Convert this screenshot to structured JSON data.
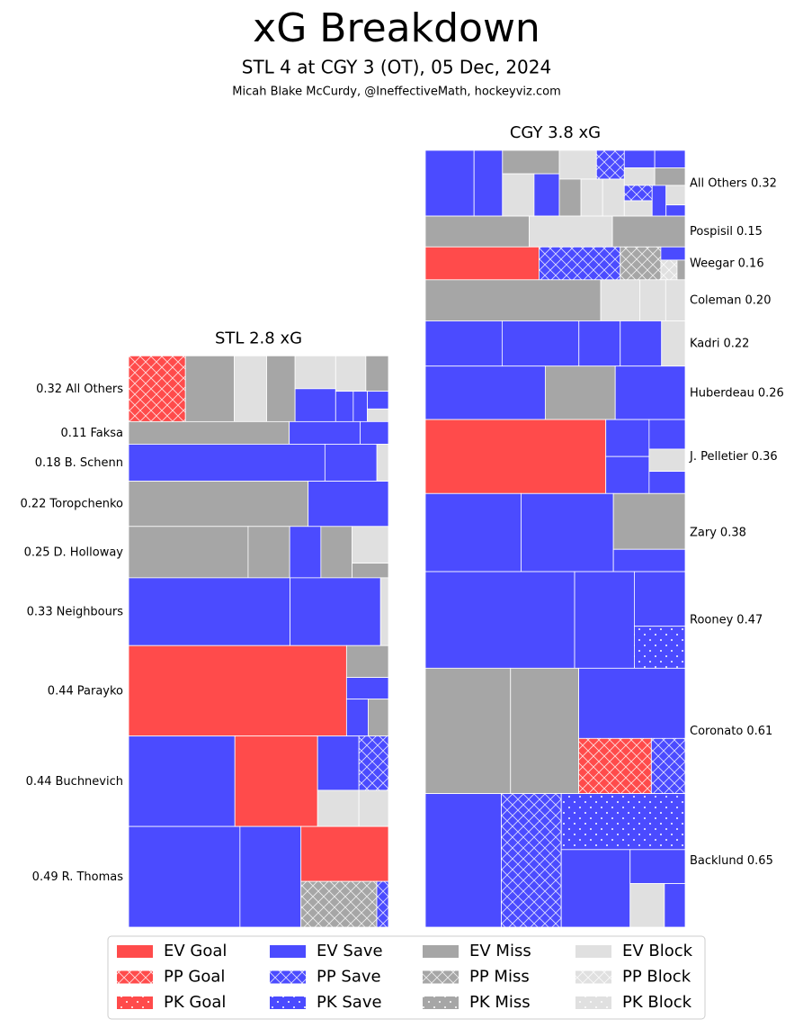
{
  "title": "xG Breakdown",
  "subtitle": "STL 4 at CGY 3 (OT), 05 Dec, 2024",
  "credit": "Micah Blake McCurdy, @IneffectiveMath, hockeyviz.com",
  "chart_data": {
    "type": "treemap",
    "legend": [
      {
        "name": "EV Goal",
        "color": "#ff4b4b",
        "pattern": "solid"
      },
      {
        "name": "PP Goal",
        "color": "#ff4b4b",
        "pattern": "cross"
      },
      {
        "name": "PK Goal",
        "color": "#ff4b4b",
        "pattern": "dots"
      },
      {
        "name": "EV Save",
        "color": "#4b4bff",
        "pattern": "solid"
      },
      {
        "name": "PP Save",
        "color": "#4b4bff",
        "pattern": "cross"
      },
      {
        "name": "PK Save",
        "color": "#4b4bff",
        "pattern": "dots"
      },
      {
        "name": "EV Miss",
        "color": "#a6a6a6",
        "pattern": "solid"
      },
      {
        "name": "PP Miss",
        "color": "#a6a6a6",
        "pattern": "cross"
      },
      {
        "name": "PK Miss",
        "color": "#a6a6a6",
        "pattern": "dots"
      },
      {
        "name": "EV Block",
        "color": "#e0e0e0",
        "pattern": "solid"
      },
      {
        "name": "PP Block",
        "color": "#e0e0e0",
        "pattern": "cross"
      },
      {
        "name": "PK Block",
        "color": "#e0e0e0",
        "pattern": "dots"
      }
    ],
    "teams": [
      {
        "title": "STL 2.8 xG",
        "label_side": "left",
        "players": [
          {
            "name": "All Others",
            "xg": 0.32,
            "shots": [
              [
                1,
                0.07
              ],
              [
                6,
                0.06
              ],
              [
                9,
                0.04
              ],
              [
                6,
                0.035
              ],
              [
                9,
                0.025
              ],
              [
                3,
                0.025
              ],
              [
                9,
                0.02
              ],
              [
                6,
                0.015
              ],
              [
                3,
                0.01
              ],
              [
                3,
                0.008
              ],
              [
                3,
                0.007
              ],
              [
                9,
                0.005
              ]
            ]
          },
          {
            "name": "Faksa",
            "xg": 0.11,
            "shots": [
              [
                6,
                0.068
              ],
              [
                3,
                0.03
              ],
              [
                3,
                0.012
              ]
            ]
          },
          {
            "name": "B. Schenn",
            "xg": 0.18,
            "shots": [
              [
                3,
                0.136
              ],
              [
                3,
                0.036
              ],
              [
                9,
                0.008
              ]
            ]
          },
          {
            "name": "Toropchenko",
            "xg": 0.22,
            "shots": [
              [
                6,
                0.152
              ],
              [
                3,
                0.068
              ]
            ]
          },
          {
            "name": "D. Holloway",
            "xg": 0.25,
            "shots": [
              [
                6,
                0.115
              ],
              [
                6,
                0.04
              ],
              [
                3,
                0.03
              ],
              [
                6,
                0.03
              ],
              [
                9,
                0.025
              ],
              [
                6,
                0.01
              ]
            ]
          },
          {
            "name": "Neighbours",
            "xg": 0.33,
            "shots": [
              [
                3,
                0.205
              ],
              [
                3,
                0.115
              ],
              [
                9,
                0.01
              ]
            ]
          },
          {
            "name": "Parayko",
            "xg": 0.44,
            "shots": [
              [
                0,
                0.369
              ],
              [
                6,
                0.025
              ],
              [
                3,
                0.017
              ],
              [
                3,
                0.015
              ],
              [
                6,
                0.014
              ]
            ]
          },
          {
            "name": "Buchnevich",
            "xg": 0.44,
            "shots": [
              [
                3,
                0.18
              ],
              [
                0,
                0.14
              ],
              [
                3,
                0.042
              ],
              [
                4,
                0.03
              ],
              [
                9,
                0.028
              ],
              [
                9,
                0.02
              ]
            ]
          },
          {
            "name": "R. Thomas",
            "xg": 0.49,
            "shots": [
              [
                3,
                0.21
              ],
              [
                3,
                0.115
              ],
              [
                0,
                0.09
              ],
              [
                7,
                0.065
              ],
              [
                4,
                0.01
              ]
            ]
          }
        ]
      },
      {
        "title": "CGY 3.8 xG",
        "label_side": "right",
        "players": [
          {
            "name": "All Others",
            "xg": 0.32,
            "shots": [
              [
                3,
                0.06
              ],
              [
                3,
                0.035
              ],
              [
                6,
                0.025
              ],
              [
                9,
                0.025
              ],
              [
                3,
                0.02
              ],
              [
                9,
                0.02
              ],
              [
                4,
                0.015
              ],
              [
                6,
                0.015
              ],
              [
                9,
                0.015
              ],
              [
                9,
                0.015
              ],
              [
                3,
                0.01
              ],
              [
                9,
                0.01
              ],
              [
                3,
                0.01
              ],
              [
                6,
                0.01
              ],
              [
                4,
                0.008
              ],
              [
                9,
                0.008
              ],
              [
                3,
                0.008
              ],
              [
                9,
                0.007
              ],
              [
                3,
                0.004
              ]
            ]
          },
          {
            "name": "Pospisil",
            "xg": 0.15,
            "shots": [
              [
                6,
                0.06
              ],
              [
                9,
                0.048
              ],
              [
                6,
                0.042
              ]
            ]
          },
          {
            "name": "Weegar",
            "xg": 0.16,
            "shots": [
              [
                0,
                0.07
              ],
              [
                4,
                0.05
              ],
              [
                7,
                0.025
              ],
              [
                3,
                0.006
              ],
              [
                10,
                0.006
              ],
              [
                6,
                0.003
              ]
            ]
          },
          {
            "name": "Coleman",
            "xg": 0.2,
            "xg_label": "0.20",
            "shots": [
              [
                6,
                0.135
              ],
              [
                9,
                0.03
              ],
              [
                9,
                0.02
              ],
              [
                9,
                0.015
              ]
            ]
          },
          {
            "name": "Kadri",
            "xg": 0.22,
            "shots": [
              [
                3,
                0.065
              ],
              [
                3,
                0.065
              ],
              [
                3,
                0.035
              ],
              [
                3,
                0.035
              ],
              [
                9,
                0.02
              ]
            ]
          },
          {
            "name": "Huberdeau",
            "xg": 0.26,
            "shots": [
              [
                3,
                0.12
              ],
              [
                6,
                0.07
              ],
              [
                3,
                0.07
              ]
            ]
          },
          {
            "name": "J. Pelletier",
            "xg": 0.36,
            "shots": [
              [
                0,
                0.25
              ],
              [
                3,
                0.03
              ],
              [
                3,
                0.03
              ],
              [
                3,
                0.02
              ],
              [
                9,
                0.015
              ],
              [
                3,
                0.015
              ]
            ]
          },
          {
            "name": "Zary",
            "xg": 0.38,
            "shots": [
              [
                3,
                0.14
              ],
              [
                3,
                0.135
              ],
              [
                6,
                0.075
              ],
              [
                3,
                0.03
              ]
            ]
          },
          {
            "name": "Rooney",
            "xg": 0.47,
            "shots": [
              [
                3,
                0.27
              ],
              [
                3,
                0.108
              ],
              [
                3,
                0.052
              ],
              [
                5,
                0.04
              ]
            ]
          },
          {
            "name": "Coronato",
            "xg": 0.61,
            "shots": [
              [
                6,
                0.2
              ],
              [
                6,
                0.16
              ],
              [
                3,
                0.14
              ],
              [
                1,
                0.075
              ],
              [
                4,
                0.035
              ]
            ]
          },
          {
            "name": "Backlund",
            "xg": 0.65,
            "shots": [
              [
                3,
                0.19
              ],
              [
                4,
                0.15
              ],
              [
                5,
                0.13
              ],
              [
                3,
                0.1
              ],
              [
                3,
                0.035
              ],
              [
                9,
                0.028
              ],
              [
                3,
                0.017
              ]
            ]
          }
        ]
      }
    ]
  }
}
